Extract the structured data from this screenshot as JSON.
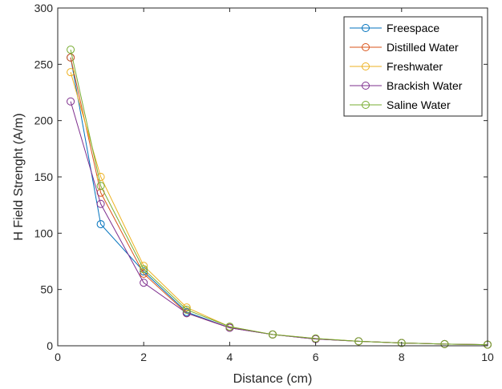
{
  "chart_data": {
    "type": "line",
    "xlabel": "Distance (cm)",
    "ylabel": "H Field Strenght (A/m)",
    "xlim": [
      0,
      10
    ],
    "ylim": [
      0,
      300
    ],
    "xticks": [
      0,
      2,
      4,
      6,
      8,
      10
    ],
    "yticks": [
      0,
      50,
      100,
      150,
      200,
      250,
      300
    ],
    "grid": false,
    "legend_position": "top-right",
    "series": [
      {
        "name": "Freespace",
        "color": "#0072BD",
        "x": [
          0.3,
          1,
          2,
          3,
          4,
          5,
          6,
          7,
          8,
          9,
          10
        ],
        "y": [
          256,
          108,
          66,
          30,
          16,
          10,
          6,
          4,
          2.5,
          1.5,
          1
        ]
      },
      {
        "name": "Distilled Water",
        "color": "#D95319",
        "x": [
          0.3,
          1,
          2,
          3,
          4,
          5,
          6,
          7,
          8,
          9,
          10
        ],
        "y": [
          256,
          136,
          64,
          29,
          16,
          10,
          6,
          4,
          2.5,
          1.5,
          1
        ]
      },
      {
        "name": "Freshwater",
        "color": "#EDB120",
        "x": [
          0.3,
          1,
          2,
          3,
          4,
          5,
          6,
          7,
          8,
          9,
          10
        ],
        "y": [
          243,
          150,
          71,
          34,
          17,
          10,
          6.5,
          4,
          2.5,
          1.5,
          1
        ]
      },
      {
        "name": "Brackish Water",
        "color": "#7E2F8E",
        "x": [
          0.3,
          1,
          2,
          3,
          4,
          5,
          6,
          7,
          8,
          9,
          10
        ],
        "y": [
          217,
          126,
          56,
          29,
          16,
          10,
          6,
          4,
          2.5,
          1.5,
          1
        ]
      },
      {
        "name": "Saline Water",
        "color": "#77AC30",
        "x": [
          0.3,
          1,
          2,
          3,
          4,
          5,
          6,
          7,
          8,
          9,
          10
        ],
        "y": [
          263,
          142,
          68,
          32,
          17,
          10,
          6.5,
          4,
          2.5,
          1.5,
          1
        ]
      }
    ]
  }
}
